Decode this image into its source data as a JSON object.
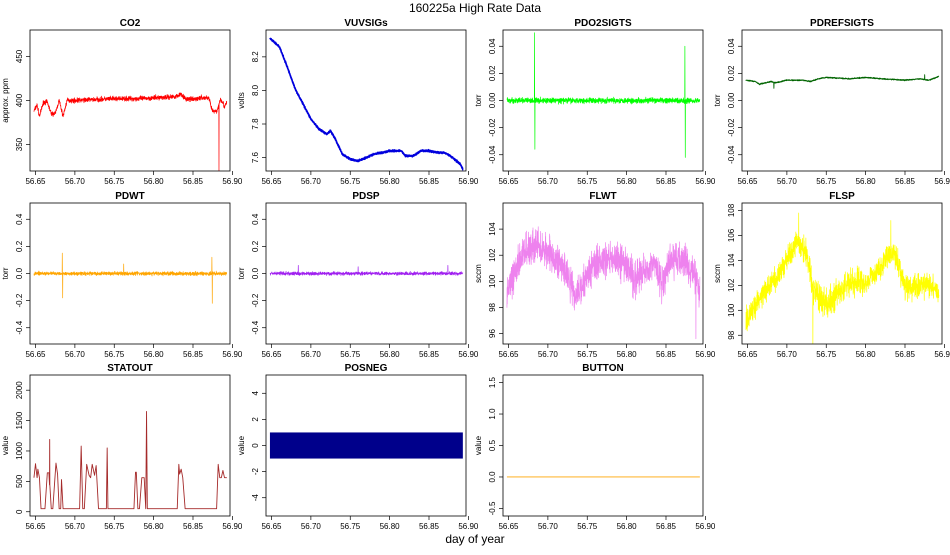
{
  "main_title": "160225a   High Rate Data",
  "xlabel": "day of year",
  "chart_data": [
    {
      "type": "line",
      "title": "CO2",
      "ylabel": "approx. ppm",
      "color": "#ff0000",
      "xlim": [
        56.643,
        56.897
      ],
      "ylim": [
        320,
        480
      ],
      "xticks": [
        "56.65",
        "56.70",
        "56.75",
        "56.80",
        "56.85",
        "56.90"
      ],
      "yticks": [
        "350",
        "400",
        "450"
      ],
      "series": {
        "x": [
          56.648,
          56.652,
          56.655,
          56.66,
          56.665,
          56.67,
          56.675,
          56.68,
          56.685,
          56.69,
          56.7,
          56.72,
          56.75,
          56.78,
          56.8,
          56.82,
          56.83,
          56.835,
          56.84,
          56.85,
          56.86,
          56.87,
          56.875,
          56.88,
          56.885,
          56.888,
          56.89,
          56.893
        ],
        "y": [
          388,
          395,
          382,
          398,
          398,
          385,
          385,
          400,
          382,
          400,
          400,
          401,
          402,
          402,
          403,
          404,
          405,
          408,
          402,
          401,
          403,
          403,
          388,
          387,
          402,
          398,
          392,
          398
        ]
      },
      "noise": 4,
      "spikes": [
        [
          56.883,
          320
        ]
      ]
    },
    {
      "type": "line",
      "title": "VUVSIGs",
      "ylabel": "volts",
      "color": "#0000dd",
      "xlim": [
        56.643,
        56.897
      ],
      "ylim": [
        7.52,
        8.36
      ],
      "xticks": [
        "56.65",
        "56.70",
        "56.75",
        "56.80",
        "56.85",
        "56.90"
      ],
      "yticks": [
        "7.6",
        "7.8",
        "8.0",
        "8.2"
      ],
      "series": {
        "x": [
          56.648,
          56.66,
          56.67,
          56.68,
          56.69,
          56.7,
          56.71,
          56.72,
          56.725,
          56.73,
          56.74,
          56.75,
          56.76,
          56.77,
          56.78,
          56.79,
          56.8,
          56.81,
          56.815,
          56.82,
          56.83,
          56.84,
          56.85,
          56.86,
          56.87,
          56.88,
          56.89,
          56.893
        ],
        "y": [
          8.31,
          8.26,
          8.14,
          8.01,
          7.92,
          7.83,
          7.77,
          7.74,
          7.76,
          7.72,
          7.62,
          7.59,
          7.58,
          7.6,
          7.62,
          7.63,
          7.64,
          7.64,
          7.64,
          7.61,
          7.61,
          7.64,
          7.64,
          7.63,
          7.63,
          7.6,
          7.56,
          7.53
        ]
      },
      "noise": 0.008,
      "spikes": []
    },
    {
      "type": "line",
      "title": "PDO2SIGTS",
      "ylabel": "torr",
      "color": "#00ff00",
      "xlim": [
        56.643,
        56.897
      ],
      "ylim": [
        -0.052,
        0.052
      ],
      "xticks": [
        "56.65",
        "56.70",
        "56.75",
        "56.80",
        "56.85",
        "56.90"
      ],
      "yticks": [
        "-0.04",
        "-0.02",
        "0.00",
        "0.02",
        "0.04"
      ],
      "series": {
        "x": [
          56.648,
          56.7,
          56.75,
          56.8,
          56.85,
          56.893
        ],
        "y": [
          0,
          0,
          0,
          0,
          0,
          0
        ]
      },
      "noise": 0.003,
      "spikes": [
        [
          56.683,
          0.05
        ],
        [
          56.6835,
          -0.036
        ],
        [
          56.874,
          0.04
        ],
        [
          56.8745,
          -0.042
        ]
      ]
    },
    {
      "type": "line",
      "title": "PDREFSIGTS",
      "ylabel": "torr",
      "color": "#006400",
      "xlim": [
        56.643,
        56.897
      ],
      "ylim": [
        -0.052,
        0.052
      ],
      "xticks": [
        "56.65",
        "56.70",
        "56.75",
        "56.80",
        "56.85",
        "56.90"
      ],
      "yticks": [
        "-0.04",
        "-0.02",
        "0.00",
        "0.02",
        "0.04"
      ],
      "series": {
        "x": [
          56.648,
          56.66,
          56.665,
          56.68,
          56.685,
          56.7,
          56.72,
          56.73,
          56.74,
          56.75,
          56.78,
          56.8,
          56.82,
          56.85,
          56.87,
          56.88,
          56.89,
          56.893
        ],
        "y": [
          0.015,
          0.014,
          0.012,
          0.014,
          0.013,
          0.015,
          0.015,
          0.014,
          0.016,
          0.017,
          0.016,
          0.017,
          0.016,
          0.015,
          0.016,
          0.015,
          0.017,
          0.018
        ]
      },
      "noise": 0.0006,
      "spikes": [
        [
          56.6835,
          0.009
        ],
        [
          56.875,
          0.019
        ]
      ]
    },
    {
      "type": "line",
      "title": "PDWT",
      "ylabel": "torr",
      "color": "#ffa500",
      "xlim": [
        56.643,
        56.897
      ],
      "ylim": [
        -0.52,
        0.52
      ],
      "xticks": [
        "56.65",
        "56.70",
        "56.75",
        "56.80",
        "56.85",
        "56.90"
      ],
      "yticks": [
        "-0.4",
        "-0.2",
        "0.0",
        "0.2",
        "0.4"
      ],
      "series": {
        "x": [
          56.648,
          56.7,
          56.75,
          56.8,
          56.85,
          56.893
        ],
        "y": [
          0,
          0,
          0,
          0,
          0,
          0
        ]
      },
      "noise": 0.02,
      "spikes": [
        [
          56.684,
          0.15
        ],
        [
          56.6845,
          -0.18
        ],
        [
          56.762,
          0.07
        ],
        [
          56.874,
          0.12
        ],
        [
          56.8745,
          -0.22
        ]
      ]
    },
    {
      "type": "line",
      "title": "PDSP",
      "ylabel": "torr",
      "color": "#a020f0",
      "xlim": [
        56.643,
        56.897
      ],
      "ylim": [
        -0.52,
        0.52
      ],
      "xticks": [
        "56.65",
        "56.70",
        "56.75",
        "56.80",
        "56.85",
        "56.90"
      ],
      "yticks": [
        "-0.4",
        "-0.2",
        "0.0",
        "0.2",
        "0.4"
      ],
      "series": {
        "x": [
          56.648,
          56.7,
          56.75,
          56.8,
          56.85,
          56.893
        ],
        "y": [
          0,
          0,
          0,
          0,
          0,
          0
        ]
      },
      "noise": 0.018,
      "spikes": [
        [
          56.684,
          0.06
        ],
        [
          56.76,
          0.05
        ],
        [
          56.874,
          0.06
        ]
      ]
    },
    {
      "type": "line",
      "title": "FLWT",
      "ylabel": "sccm",
      "color": "#ee82ee",
      "xlim": [
        56.643,
        56.897
      ],
      "ylim": [
        95.2,
        106.0
      ],
      "xticks": [
        "56.65",
        "56.70",
        "56.75",
        "56.80",
        "56.85",
        "56.90"
      ],
      "yticks": [
        "96",
        "98",
        "100",
        "102",
        "104"
      ],
      "series": {
        "x": [
          56.648,
          56.655,
          56.67,
          56.685,
          56.7,
          56.715,
          56.725,
          56.735,
          56.745,
          56.76,
          56.78,
          56.8,
          56.81,
          56.825,
          56.835,
          56.845,
          56.855,
          56.87,
          56.885,
          56.893
        ],
        "y": [
          99,
          100.5,
          102.3,
          102.8,
          102.2,
          101.5,
          100.5,
          99.0,
          99.8,
          101.3,
          101.8,
          101.2,
          100.2,
          101.0,
          101.4,
          99.8,
          101.4,
          101.8,
          100.8,
          99.2
        ]
      },
      "noise": 1.9,
      "spikes": [
        [
          56.888,
          95.6
        ]
      ]
    },
    {
      "type": "line",
      "title": "FLSP",
      "ylabel": "sccm",
      "color": "#ffff00",
      "xlim": [
        56.643,
        56.897
      ],
      "ylim": [
        97.3,
        108.6
      ],
      "xticks": [
        "56.65",
        "56.70",
        "56.75",
        "56.80",
        "56.85",
        "56.90"
      ],
      "yticks": [
        "98",
        "100",
        "102",
        "104",
        "106",
        "108"
      ],
      "series": {
        "x": [
          56.648,
          56.655,
          56.67,
          56.69,
          56.7,
          56.715,
          56.725,
          56.735,
          56.75,
          56.77,
          56.79,
          56.8,
          56.815,
          56.83,
          56.84,
          56.85,
          56.86,
          56.875,
          56.893
        ],
        "y": [
          99,
          99.8,
          101.5,
          102.8,
          104,
          105.5,
          104.5,
          101.5,
          100.5,
          101.8,
          102.5,
          102.2,
          103.2,
          104.5,
          104.2,
          102.0,
          101.8,
          102.2,
          101.5
        ]
      },
      "noise": 1.5,
      "spikes": [
        [
          56.715,
          107.8
        ],
        [
          56.733,
          96.9
        ],
        [
          56.832,
          107.2
        ]
      ]
    },
    {
      "type": "line",
      "title": "STATOUT",
      "ylabel": "value",
      "color": "#a52a2a",
      "xlim": [
        56.643,
        56.897
      ],
      "ylim": [
        -70,
        2250
      ],
      "xticks": [
        "56.65",
        "56.70",
        "56.75",
        "56.80",
        "56.85",
        "56.90"
      ],
      "yticks": [
        "0",
        "500",
        "1000",
        "1500",
        "2000"
      ],
      "series": {
        "x": [
          56.648,
          56.65,
          56.652,
          56.653,
          56.655,
          56.657,
          56.66,
          56.662,
          56.665,
          56.667,
          56.67,
          56.672,
          56.675,
          56.676,
          56.678,
          56.68,
          56.682,
          56.683,
          56.685,
          56.687,
          56.69,
          56.692,
          56.695,
          56.705,
          56.706,
          56.708,
          56.71,
          56.712,
          56.715,
          56.718,
          56.72,
          56.722,
          56.725,
          56.727,
          56.73,
          56.74,
          56.741,
          56.742,
          56.743,
          56.745,
          56.75,
          56.755,
          56.76,
          56.775,
          56.777,
          56.778,
          56.78,
          56.782,
          56.785,
          56.788,
          56.79,
          56.791,
          56.792,
          56.795,
          56.8,
          56.81,
          56.82,
          56.83,
          56.832,
          56.833,
          56.835,
          56.837,
          56.84,
          56.845,
          56.85,
          56.86,
          56.87,
          56.88,
          56.882,
          56.884,
          56.886,
          56.888,
          56.89,
          56.893
        ],
        "y": [
          560,
          790,
          560,
          700,
          560,
          50,
          50,
          50,
          640,
          640,
          50,
          50,
          620,
          800,
          620,
          50,
          50,
          530,
          50,
          50,
          50,
          50,
          50,
          50,
          50,
          1080,
          50,
          50,
          780,
          600,
          560,
          780,
          600,
          760,
          50,
          50,
          1050,
          50,
          50,
          50,
          50,
          50,
          50,
          50,
          650,
          650,
          50,
          50,
          560,
          560,
          50,
          1650,
          50,
          50,
          50,
          50,
          50,
          50,
          780,
          620,
          700,
          560,
          50,
          50,
          50,
          50,
          50,
          50,
          780,
          560,
          560,
          680,
          560,
          560
        ]
      },
      "noise": 0,
      "spikes": [
        [
          56.668,
          1190
        ]
      ]
    },
    {
      "type": "band",
      "title": "POSNEG",
      "ylabel": "value",
      "color": "#00008b",
      "xlim": [
        56.643,
        56.897
      ],
      "ylim": [
        -5.4,
        5.4
      ],
      "xticks": [
        "56.65",
        "56.70",
        "56.75",
        "56.80",
        "56.85",
        "56.90"
      ],
      "yticks": [
        "-4",
        "-2",
        "0",
        "2",
        "4"
      ],
      "band": {
        "x": [
          56.648,
          56.893
        ],
        "y": [
          -1,
          1
        ]
      }
    },
    {
      "type": "line",
      "title": "BUTTON",
      "ylabel": "value",
      "color": "#ffa500",
      "xlim": [
        56.643,
        56.897
      ],
      "ylim": [
        -0.62,
        1.62
      ],
      "xticks": [
        "56.65",
        "56.70",
        "56.75",
        "56.80",
        "56.85",
        "56.90"
      ],
      "yticks": [
        "-0.5",
        "0.0",
        "0.5",
        "1.0",
        "1.5"
      ],
      "series": {
        "x": [
          56.648,
          56.893
        ],
        "y": [
          0,
          0
        ]
      },
      "noise": 0,
      "spikes": []
    }
  ]
}
